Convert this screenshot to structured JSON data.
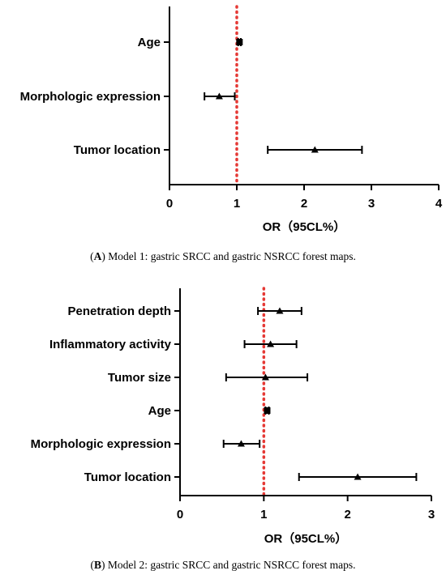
{
  "chart_data": [
    {
      "type": "forest",
      "panel_caption": {
        "letter": "A",
        "text": "Model 1: gastric SRCC and gastric NSRCC forest maps."
      },
      "xlabel": "OR（95CL%）",
      "xlim": [
        0,
        4
      ],
      "xticks": [
        "0",
        "1",
        "2",
        "3",
        "4"
      ],
      "reference_line": 1,
      "reference_color": "#e53935",
      "rows": [
        {
          "label": "Age",
          "or": 1.04,
          "lo": 1.02,
          "hi": 1.06,
          "marker": "square"
        },
        {
          "label": "Morphologic expression",
          "or": 0.74,
          "lo": 0.52,
          "hi": 0.97,
          "marker": "triangle"
        },
        {
          "label": "Tumor location",
          "or": 2.16,
          "lo": 1.46,
          "hi": 2.86,
          "marker": "triangle"
        }
      ]
    },
    {
      "type": "forest",
      "panel_caption": {
        "letter": "B",
        "text": "Model 2: gastric SRCC and gastric NSRCC forest maps."
      },
      "xlabel": "OR（95CL%）",
      "xlim": [
        0,
        3
      ],
      "xticks": [
        "0",
        "1",
        "2",
        "3"
      ],
      "reference_line": 1,
      "reference_color": "#e53935",
      "rows": [
        {
          "label": "Penetration depth",
          "or": 1.19,
          "lo": 0.93,
          "hi": 1.45,
          "marker": "triangle"
        },
        {
          "label": "Inflammatory activity",
          "or": 1.08,
          "lo": 0.77,
          "hi": 1.39,
          "marker": "triangle"
        },
        {
          "label": "Tumor size",
          "or": 1.02,
          "lo": 0.55,
          "hi": 1.52,
          "marker": "triangle"
        },
        {
          "label": "Age",
          "or": 1.04,
          "lo": 1.02,
          "hi": 1.06,
          "marker": "square"
        },
        {
          "label": "Morphologic expression",
          "or": 0.73,
          "lo": 0.52,
          "hi": 0.95,
          "marker": "triangle"
        },
        {
          "label": "Tumor location",
          "or": 2.12,
          "lo": 1.42,
          "hi": 2.82,
          "marker": "triangle"
        }
      ]
    }
  ]
}
